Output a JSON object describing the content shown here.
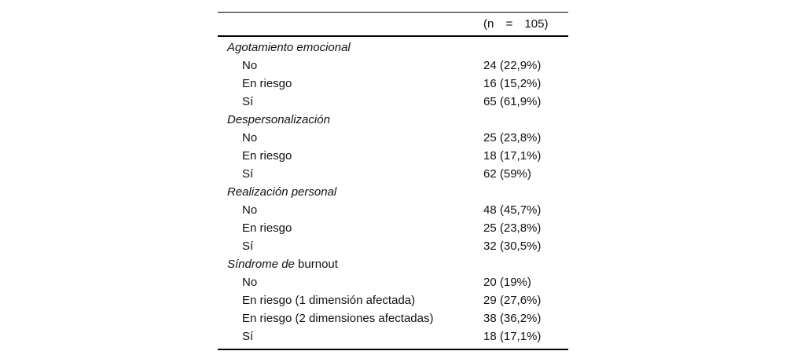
{
  "table": {
    "header": {
      "n_label": "(n = 105)"
    },
    "sections": [
      {
        "title_italic": "Agotamiento emocional",
        "title_roman": "",
        "rows": [
          {
            "label": "No",
            "value": "24 (22,9%)"
          },
          {
            "label": "En riesgo",
            "value": "16 (15,2%)"
          },
          {
            "label": "Sí",
            "value": "65 (61,9%)"
          }
        ]
      },
      {
        "title_italic": "Despersonalización",
        "title_roman": "",
        "rows": [
          {
            "label": "No",
            "value": "25 (23,8%)"
          },
          {
            "label": "En riesgo",
            "value": "18 (17,1%)"
          },
          {
            "label": "Sí",
            "value": "62 (59%)"
          }
        ]
      },
      {
        "title_italic": "Realización personal",
        "title_roman": "",
        "rows": [
          {
            "label": "No",
            "value": "48 (45,7%)"
          },
          {
            "label": "En riesgo",
            "value": "25 (23,8%)"
          },
          {
            "label": "Sí",
            "value": "32 (30,5%)"
          }
        ]
      },
      {
        "title_italic": "Síndrome de",
        "title_roman": " burnout",
        "rows": [
          {
            "label": "No",
            "value": "20 (19%)"
          },
          {
            "label": "En riesgo (1 dimensión afectada)",
            "value": "29 (27,6%)"
          },
          {
            "label": "En riesgo (2 dimensiones afectadas)",
            "value": "38 (36,2%)"
          },
          {
            "label": "Sí",
            "value": "18 (17,1%)"
          }
        ]
      }
    ]
  }
}
